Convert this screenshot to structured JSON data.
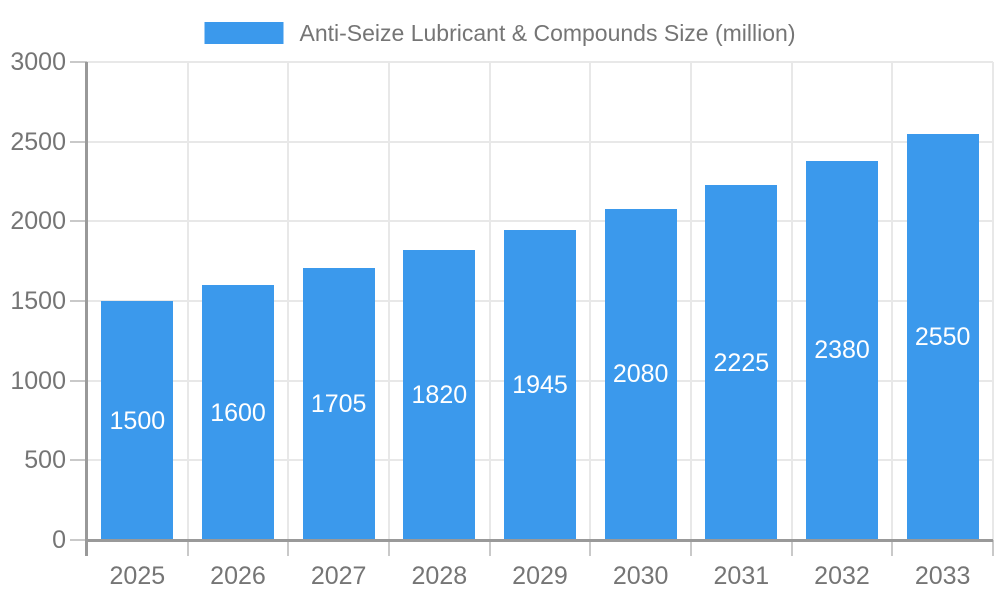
{
  "chart_data": {
    "type": "bar",
    "title": "Anti-Seize Lubricant & Compounds Size (million)",
    "legend": [
      "Anti-Seize Lubricant & Compounds Size (million)"
    ],
    "legend_position": "top-center",
    "categories": [
      "2025",
      "2026",
      "2027",
      "2028",
      "2029",
      "2030",
      "2031",
      "2032",
      "2033"
    ],
    "values": [
      1500,
      1600,
      1705,
      1820,
      1945,
      2080,
      2225,
      2380,
      2550
    ],
    "xlabel": "",
    "ylabel": "",
    "ylim": [
      0,
      3000
    ],
    "y_ticks": [
      0,
      500,
      1000,
      1500,
      2000,
      2500,
      3000
    ],
    "grid": true,
    "bar_labels_inside": true,
    "colors": {
      "bar": "#3B99EC",
      "grid": "#E8E8E8",
      "axis_line": "#999999",
      "tick": "#C9C9C9",
      "axis_text": "#757575",
      "bar_label": "#FFFFFF",
      "background": "#FFFFFF"
    }
  }
}
